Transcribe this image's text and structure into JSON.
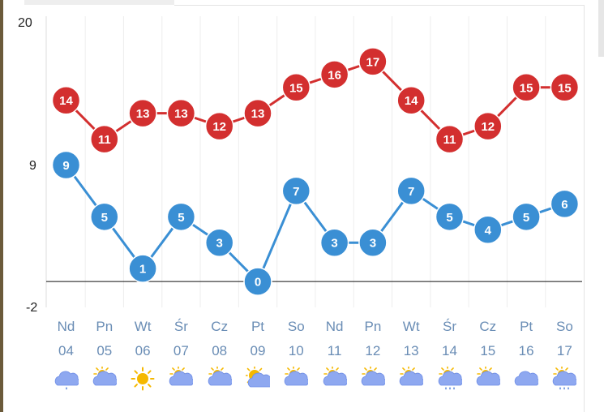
{
  "chart_data": {
    "type": "line",
    "categories": [
      "04",
      "05",
      "06",
      "07",
      "08",
      "09",
      "10",
      "11",
      "12",
      "13",
      "14",
      "15",
      "16",
      "17"
    ],
    "day_names": [
      "Nd",
      "Pn",
      "Wt",
      "Śr",
      "Cz",
      "Pt",
      "So",
      "Nd",
      "Pn",
      "Wt",
      "Śr",
      "Cz",
      "Pt",
      "So"
    ],
    "day_numbers": [
      "04",
      "05",
      "06",
      "07",
      "08",
      "09",
      "10",
      "11",
      "12",
      "13",
      "14",
      "15",
      "16",
      "17"
    ],
    "series": [
      {
        "values": [
          14,
          11,
          13,
          13,
          12,
          13,
          15,
          16,
          17,
          14,
          11,
          12,
          15,
          15
        ],
        "color": "#d32f2f"
      },
      {
        "values": [
          9,
          5,
          1,
          5,
          3,
          0,
          7,
          3,
          3,
          7,
          5,
          4,
          5,
          6
        ],
        "color": "#3a8fd4"
      }
    ],
    "ylim": [
      -2,
      20
    ],
    "yticks": [
      "20",
      "9",
      "-2"
    ],
    "zero_line": 0,
    "grid": "vertical",
    "weather_icons": [
      "cloud-rain-icon",
      "cloud-sun-icon",
      "sun-icon",
      "cloud-sun-icon",
      "cloud-sun-icon",
      "sun-cloud-icon",
      "cloud-sun-icon",
      "cloud-sun-icon",
      "cloud-sun-icon",
      "cloud-sun-icon",
      "cloud-sun-rain-icon",
      "cloud-sun-icon",
      "cloud-icon",
      "cloud-sun-rain-icon"
    ]
  },
  "colors": {
    "sun": "#f5b800",
    "cloud": "#8ea8f0",
    "cloud_dark": "#6f8ee6",
    "rain": "#3a6fd4",
    "axis_text": "#6a8db5"
  }
}
